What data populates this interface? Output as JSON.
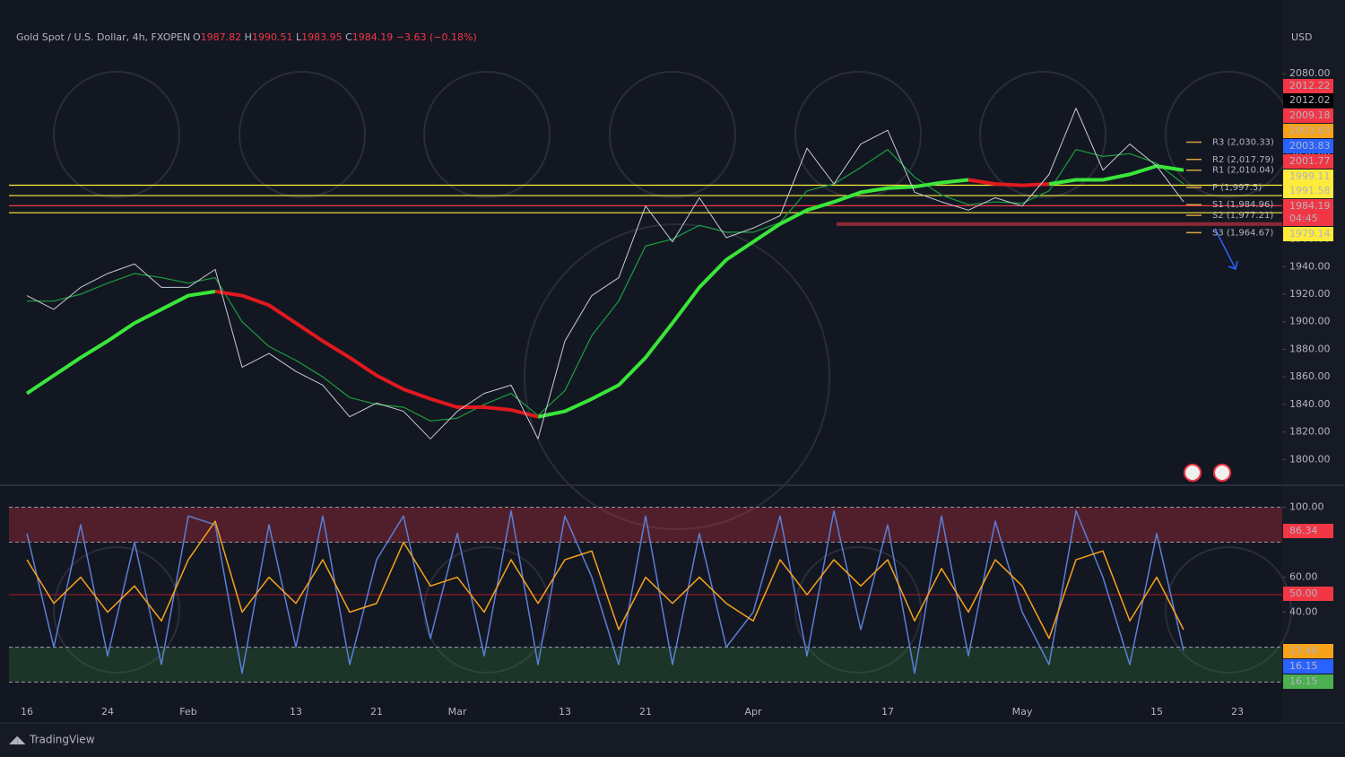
{
  "header": {
    "symbol": "Gold Spot / U.S. Dollar, 4h, FXOPEN",
    "ohlc": [
      {
        "label": "O",
        "value": 1987.82
      },
      {
        "label": "H",
        "value": 1990.51
      },
      {
        "label": "L",
        "value": 1983.95
      },
      {
        "label": "C",
        "value": 1984.19
      }
    ],
    "change": "−3.63 (−0.18%)"
  },
  "currency": "USD",
  "brand": "TradingView",
  "chart_data": [
    {
      "type": "line",
      "ylim": [
        1782,
        2114
      ],
      "yticks": [
        {
          "value": 1800,
          "label": "1800.00"
        },
        {
          "value": 1820,
          "label": "1820.00"
        },
        {
          "value": 1840,
          "label": "1840.00"
        },
        {
          "value": 1860,
          "label": "1860.00"
        },
        {
          "value": 1880,
          "label": "1880.00"
        },
        {
          "value": 1900,
          "label": "1900.00"
        },
        {
          "value": 1920,
          "label": "1920.00"
        },
        {
          "value": 1940,
          "label": "1940.00"
        },
        {
          "value": 1960,
          "label": "1960.00"
        },
        {
          "value": 1980,
          "label": "1980.00"
        },
        {
          "value": 2000,
          "label": "2000.00"
        },
        {
          "value": 2020,
          "label": "2020.00"
        },
        {
          "value": 2040,
          "label": "2040.00"
        },
        {
          "value": 2060,
          "label": "2060.00"
        },
        {
          "value": 2080,
          "label": "2080.00"
        }
      ],
      "series": [
        {
          "color": "#1b9e3e",
          "width": 1.2,
          "values": [
            1915,
            1915,
            1920,
            1928,
            1935,
            1932,
            1928,
            1932,
            1900,
            1882,
            1872,
            1860,
            1845,
            1840,
            1838,
            1828,
            1830,
            1840,
            1848,
            1832,
            1850,
            1890,
            1915,
            1955,
            1960,
            1970,
            1965,
            1965,
            1972,
            1995,
            2000,
            2012,
            2025,
            2005,
            1992,
            1985,
            1987,
            1986,
            1995,
            2025,
            2020,
            2022,
            2015,
            2000,
            null,
            null
          ]
        },
        {
          "color": "#39e639",
          "width": 4,
          "values": [
            1848,
            1861,
            1874,
            1886,
            1899,
            1909,
            1919,
            1922,
            null,
            null,
            null,
            null,
            null,
            null,
            null,
            null,
            null,
            null,
            null,
            1831,
            1835,
            1844,
            1854,
            1874,
            1899,
            1925,
            1945,
            1958,
            1971,
            1981,
            1987,
            1994,
            1997,
            1998,
            2001,
            2003,
            null,
            null,
            2000,
            2003,
            2003,
            2007,
            2013,
            2010,
            null,
            null
          ]
        },
        {
          "color": "#e0191f",
          "width": 4,
          "values": [
            null,
            null,
            null,
            null,
            null,
            null,
            null,
            1922,
            1919,
            1912,
            1899,
            1886,
            1874,
            1861,
            1851,
            1844,
            1838,
            1838,
            1836,
            1831,
            null,
            null,
            null,
            null,
            null,
            null,
            null,
            null,
            null,
            null,
            null,
            null,
            null,
            null,
            null,
            2003,
            2000,
            1999,
            2000,
            null,
            null,
            null,
            null,
            null,
            null,
            null
          ]
        },
        {
          "color": "#c8cbd6",
          "width": 1,
          "values": [
            1919,
            1909,
            1925,
            1935,
            1942,
            1925,
            1925,
            1938,
            1867,
            1877,
            1864,
            1854,
            1831,
            1841,
            1835,
            1815,
            1835,
            1848,
            1854,
            1815,
            1886,
            1919,
            1932,
            1984,
            1958,
            1990,
            1961,
            1968,
            1977,
            2026,
            2000,
            2029,
            2039,
            1994,
            1987,
            1981,
            1990,
            1984,
            2007,
            2055,
            2010,
            2029,
            2013,
            1987,
            null,
            null
          ]
        }
      ],
      "zone": {
        "range": [
          1969.6,
          1972.2
        ],
        "color": "rgba(242,54,69,0.55)"
      },
      "pivots": {
        "color": "#d9a045",
        "levels": [
          {
            "value": 2030.33,
            "label": "R3 (2,030.33)"
          },
          {
            "value": 2017.79,
            "label": "R2 (2,017.79)"
          },
          {
            "value": 2010.04,
            "label": "R1 (2,010.04)"
          },
          {
            "value": 1997.5,
            "label": "P (1,997.5)"
          },
          {
            "value": 1984.96,
            "label": "S1 (1,984.96)"
          },
          {
            "value": 1977.21,
            "label": "S2 (1,977.21)"
          },
          {
            "value": 1964.67,
            "label": "S3 (1,964.67)"
          }
        ]
      },
      "price_labels": [
        {
          "value": 2012.22,
          "color": "#f23645",
          "text_color": "#ffffff"
        },
        {
          "value": 2012.02,
          "color": "#000000",
          "text_color": "#ffffff"
        },
        {
          "value": 2009.18,
          "color": "#f23645",
          "text_color": "#ffffff"
        },
        {
          "value": 2003.83,
          "color": "#f7a21b",
          "text_color": "#131722"
        },
        {
          "value": 2003.83,
          "color": "#2962ff",
          "text_color": "#ffffff"
        },
        {
          "value": 2001.77,
          "color": "#f23645",
          "text_color": "#ffffff"
        },
        {
          "value": 1999.11,
          "color": "#ffeb3b",
          "text_color": "#131722",
          "line": true
        },
        {
          "value": 1991.58,
          "color": "#ffeb3b",
          "text_color": "#131722",
          "line": true
        },
        {
          "value": 1984.19,
          "color": "#f23645",
          "text_color": "#ffffff",
          "line": true
        },
        {
          "label": "04:45",
          "color": "#f23645",
          "text_color": "#ffffff"
        },
        {
          "value": 1979.14,
          "color": "#ffeb3b",
          "text_color": "#131722",
          "line": true
        }
      ]
    },
    {
      "type": "line",
      "ylim": [
        -10,
        109
      ],
      "yticks": [
        {
          "value": 100,
          "label": "100.00"
        },
        {
          "value": 60,
          "label": "60.00"
        },
        {
          "value": 40,
          "label": "40.00"
        }
      ],
      "categories": [
        "16",
        null,
        null,
        "24",
        null,
        null,
        "Feb",
        null,
        null,
        null,
        "13",
        null,
        null,
        "21",
        null,
        null,
        "Mar",
        null,
        null,
        null,
        "13",
        null,
        null,
        "21",
        null,
        null,
        null,
        "Apr",
        null,
        null,
        null,
        null,
        "17",
        null,
        null,
        null,
        null,
        "May",
        null,
        null,
        null,
        null,
        "15",
        null,
        null,
        "23"
      ],
      "bands": [
        {
          "range": [
            80,
            100
          ],
          "color": "rgba(242,54,69,0.28)"
        },
        {
          "range": [
            0,
            20
          ],
          "color": "rgba(56,142,60,0.25)"
        }
      ],
      "dashed_levels": [
        100,
        80,
        20,
        0
      ],
      "midline": {
        "value": 50,
        "color": "#b2182b"
      },
      "series": [
        {
          "color": "#5b7fd6",
          "width": 1.5,
          "values": [
            85,
            20,
            90,
            15,
            80,
            10,
            95,
            90,
            5,
            90,
            20,
            95,
            10,
            70,
            95,
            25,
            85,
            15,
            98,
            10,
            95,
            60,
            10,
            95,
            10,
            85,
            20,
            40,
            95,
            15,
            98,
            30,
            90,
            5,
            95,
            15,
            92,
            40,
            10,
            98,
            60,
            10,
            85,
            18,
            null,
            null
          ]
        },
        {
          "color": "#f7a21b",
          "width": 1.5,
          "values": [
            70,
            45,
            60,
            40,
            55,
            35,
            70,
            92,
            40,
            60,
            45,
            70,
            40,
            45,
            80,
            55,
            60,
            40,
            70,
            45,
            70,
            75,
            30,
            60,
            45,
            60,
            45,
            35,
            70,
            50,
            70,
            55,
            70,
            35,
            65,
            40,
            70,
            55,
            25,
            70,
            75,
            35,
            60,
            30,
            null,
            null
          ]
        }
      ],
      "price_labels": [
        {
          "value": 86.34,
          "color": "#f23645",
          "text_color": "#ffffff"
        },
        {
          "value": 50,
          "label": "50.00",
          "color": "#f23645",
          "text_color": "#ffffff"
        },
        {
          "value": 17.46,
          "color": "#f7a21b",
          "text_color": "#131722"
        },
        {
          "value": 16.15,
          "color": "#2962ff",
          "text_color": "#ffffff"
        },
        {
          "value": 16.15,
          "color": "#4caf50",
          "text_color": "#ffffff"
        }
      ]
    }
  ]
}
